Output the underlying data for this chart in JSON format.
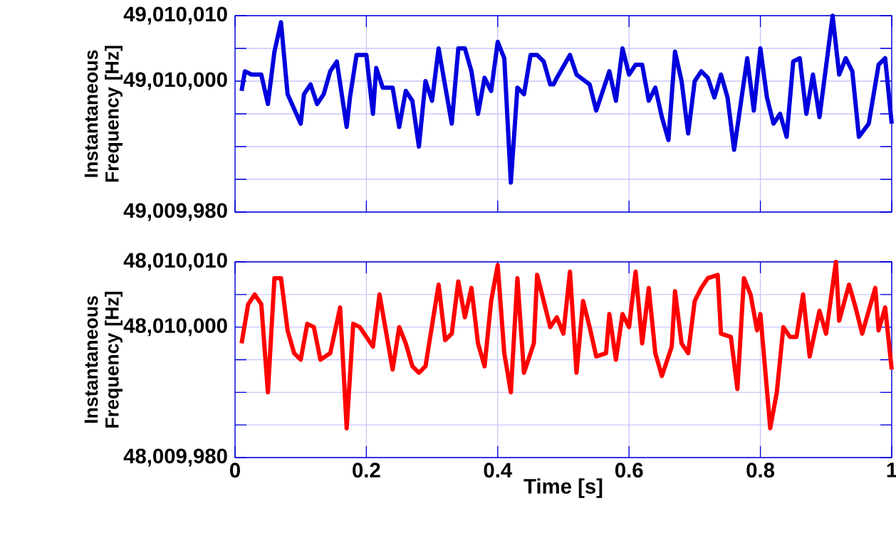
{
  "chart_data": [
    {
      "type": "line",
      "ylabel": "Instantaneous Frequency [Hz]",
      "xlim": [
        0,
        1
      ],
      "xticks": [
        0,
        0.2,
        0.4,
        0.6,
        0.8,
        1
      ],
      "ylim": [
        49009980,
        49010010
      ],
      "yticks": [
        {
          "value": 49009980,
          "label": "49,009,980"
        },
        {
          "value": 49009985,
          "label": null
        },
        {
          "value": 49009990,
          "label": null
        },
        {
          "value": 49009995,
          "label": null
        },
        {
          "value": 49010000,
          "label": "49,010,000"
        },
        {
          "value": 49010005,
          "label": null
        },
        {
          "value": 49010010,
          "label": "49,010,010"
        }
      ],
      "tick_labels": "y",
      "grid": true,
      "marker": "none",
      "line_style": "solid",
      "x": [
        0.01,
        0.015,
        0.025,
        0.04,
        0.05,
        0.06,
        0.07,
        0.08,
        0.1,
        0.105,
        0.115,
        0.125,
        0.135,
        0.145,
        0.155,
        0.17,
        0.175,
        0.185,
        0.2,
        0.21,
        0.215,
        0.225,
        0.24,
        0.25,
        0.26,
        0.27,
        0.28,
        0.29,
        0.3,
        0.31,
        0.33,
        0.34,
        0.35,
        0.36,
        0.37,
        0.38,
        0.39,
        0.4,
        0.41,
        0.42,
        0.43,
        0.44,
        0.45,
        0.46,
        0.47,
        0.48,
        0.485,
        0.49,
        0.51,
        0.52,
        0.54,
        0.55,
        0.57,
        0.58,
        0.59,
        0.6,
        0.61,
        0.62,
        0.63,
        0.64,
        0.65,
        0.66,
        0.67,
        0.68,
        0.69,
        0.7,
        0.71,
        0.72,
        0.73,
        0.74,
        0.75,
        0.76,
        0.78,
        0.79,
        0.8,
        0.81,
        0.82,
        0.83,
        0.84,
        0.85,
        0.86,
        0.87,
        0.88,
        0.89,
        0.91,
        0.92,
        0.93,
        0.94,
        0.95,
        0.965,
        0.98,
        0.99,
        1.0
      ],
      "series": [
        {
          "color": "#0000dd",
          "values": [
            49009998.5,
            49010001.5,
            49010001,
            49010001,
            49009996.5,
            49010004.5,
            49010009,
            49009998,
            49009993.5,
            49009998,
            49009999.5,
            49009996.5,
            49009998,
            49010001.5,
            49010003,
            49009993,
            49009997.5,
            49010004,
            49010004,
            49009995,
            49010002,
            49009999,
            49009999,
            49009993,
            49009998.5,
            49009997,
            49009990,
            49010000,
            49009997,
            49010005,
            49009993.5,
            49010005,
            49010005,
            49010001.5,
            49009995,
            49010000.5,
            49009998.5,
            49010006,
            49010003.5,
            49009984.5,
            49009999,
            49009998,
            49010004,
            49010004,
            49010003,
            49009999.5,
            49009999.5,
            49010000.5,
            49010004,
            49010001,
            49009999.5,
            49009995.5,
            49010001.5,
            49009997,
            49010005,
            49010001,
            49010002.5,
            49010002.5,
            49009997,
            49009999,
            49009994.5,
            49009991,
            49010004.5,
            49010000,
            49009992,
            49010000,
            49010001.5,
            49010000.5,
            49009997.5,
            49010001,
            49009997.5,
            49009989.5,
            49010003.5,
            49009995.5,
            49010005,
            49009997.5,
            49009993.5,
            49009995,
            49009991.5,
            49010003,
            49010003.5,
            49009995,
            49010001,
            49009994.5,
            49010010,
            49010001,
            49010003.5,
            49010001.5,
            49009991.5,
            49009993.5,
            49010002.5,
            49010003.5,
            49009993.5
          ]
        }
      ]
    },
    {
      "type": "line",
      "ylabel": "Instantaneous Frequency [Hz]",
      "xlabel": "Time [s]",
      "xlim": [
        0,
        1
      ],
      "xticks": [
        0,
        0.2,
        0.4,
        0.6,
        0.8,
        1
      ],
      "ylim": [
        48009980,
        48010010
      ],
      "yticks": [
        {
          "value": 48009980,
          "label": "48,009,980"
        },
        {
          "value": 48009985,
          "label": null
        },
        {
          "value": 48009990,
          "label": null
        },
        {
          "value": 48009995,
          "label": null
        },
        {
          "value": 48010000,
          "label": "48,010,000"
        },
        {
          "value": 48010005,
          "label": null
        },
        {
          "value": 48010010,
          "label": "48,010,010"
        }
      ],
      "grid": true,
      "marker": "none",
      "line_style": "solid",
      "x": [
        0.01,
        0.02,
        0.03,
        0.04,
        0.05,
        0.06,
        0.07,
        0.08,
        0.09,
        0.1,
        0.11,
        0.12,
        0.13,
        0.145,
        0.16,
        0.17,
        0.18,
        0.19,
        0.2,
        0.21,
        0.22,
        0.24,
        0.25,
        0.26,
        0.27,
        0.28,
        0.29,
        0.31,
        0.32,
        0.33,
        0.34,
        0.35,
        0.36,
        0.37,
        0.38,
        0.39,
        0.4,
        0.41,
        0.42,
        0.43,
        0.44,
        0.455,
        0.46,
        0.48,
        0.49,
        0.5,
        0.51,
        0.52,
        0.53,
        0.54,
        0.55,
        0.565,
        0.57,
        0.58,
        0.59,
        0.6,
        0.61,
        0.62,
        0.63,
        0.64,
        0.65,
        0.665,
        0.67,
        0.68,
        0.69,
        0.7,
        0.71,
        0.72,
        0.735,
        0.74,
        0.755,
        0.765,
        0.775,
        0.785,
        0.795,
        0.8,
        0.815,
        0.825,
        0.835,
        0.845,
        0.855,
        0.865,
        0.875,
        0.89,
        0.9,
        0.915,
        0.92,
        0.935,
        0.945,
        0.955,
        0.975,
        0.98,
        0.99,
        1.0
      ],
      "series": [
        {
          "color": "#ff0000",
          "values": [
            48009997.5,
            48010003.5,
            48010005,
            48010003.5,
            48009990,
            48010007.5,
            48010007.5,
            48009999.5,
            48009996,
            48009995,
            48010000.5,
            48010000,
            48009995,
            48009996,
            48010003,
            48009984.5,
            48010000.5,
            48010000,
            48009998.5,
            48009997,
            48010005,
            48009993.5,
            48010000,
            48009997.5,
            48009994,
            48009993,
            48009994,
            48010006.5,
            48009998,
            48009999,
            48010007,
            48010001.5,
            48010006,
            48009997.5,
            48009994,
            48010004,
            48010009.5,
            48009996,
            48009990,
            48010007.5,
            48009993,
            48009997.5,
            48010008,
            48010000,
            48010001.5,
            48009999,
            48010008.5,
            48009993,
            48010004,
            48010000,
            48009995.5,
            48009996,
            48010002,
            48009995,
            48010002,
            48010000,
            48010008.5,
            48009997.5,
            48010006,
            48009996,
            48009992.5,
            48009997,
            48010005.5,
            48009997.5,
            48009996,
            48010004,
            48010006,
            48010007.5,
            48010008,
            48009999,
            48009998.5,
            48009990.5,
            48010007.5,
            48010005,
            48009999.5,
            48010002,
            48009984.5,
            48009990,
            48010000,
            48009998.5,
            48009998.5,
            48010005,
            48009995.5,
            48010002.5,
            48009999,
            48010010,
            48010001,
            48010006.5,
            48010003,
            48009999,
            48010006,
            48009999.5,
            48010003,
            48009993.5
          ]
        }
      ]
    }
  ]
}
